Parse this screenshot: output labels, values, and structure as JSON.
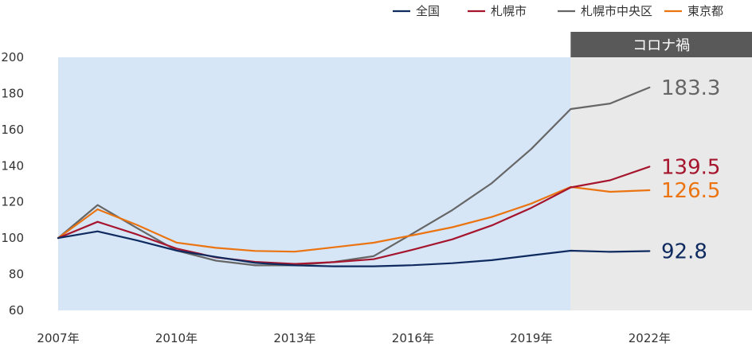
{
  "chart_data": {
    "type": "line",
    "title": "",
    "xlabel": "",
    "ylabel": "",
    "x": [
      2007,
      2008,
      2009,
      2010,
      2011,
      2012,
      2013,
      2014,
      2015,
      2016,
      2017,
      2018,
      2019,
      2020,
      2021,
      2022
    ],
    "x_tick_labels": [
      {
        "x": 2007,
        "label": "2007年"
      },
      {
        "x": 2010,
        "label": "2010年"
      },
      {
        "x": 2013,
        "label": "2013年"
      },
      {
        "x": 2016,
        "label": "2016年"
      },
      {
        "x": 2019,
        "label": "2019年"
      },
      {
        "x": 2022,
        "label": "2022年"
      }
    ],
    "ylim": [
      60,
      200
    ],
    "y_ticks": [
      60,
      80,
      100,
      120,
      140,
      160,
      180,
      200
    ],
    "x_range": [
      2007,
      2024.6
    ],
    "shaded_range": [
      2007,
      2020
    ],
    "covid_band": {
      "label": "コロナ禍",
      "from": 2020,
      "to": 2024.6
    },
    "legend_position": "top-right",
    "series": [
      {
        "name": "全国",
        "color": "#0f2a5f",
        "values": [
          100,
          103.7,
          98.7,
          93.1,
          89.6,
          86.3,
          84.9,
          84.4,
          84.4,
          85.0,
          86.1,
          87.8,
          90.4,
          93.0,
          92.4,
          92.8
        ],
        "end_label": "92.8"
      },
      {
        "name": "札幌市",
        "color": "#a5152d",
        "values": [
          100,
          109.0,
          102.0,
          94.2,
          89.3,
          86.8,
          85.7,
          86.7,
          88.3,
          93.6,
          99.3,
          107.0,
          116.7,
          128.0,
          132.0,
          139.5
        ],
        "end_label": "139.5"
      },
      {
        "name": "札幌市中央区",
        "color": "#666666",
        "values": [
          100,
          118.3,
          105.5,
          93.1,
          87.5,
          84.9,
          84.9,
          86.8,
          90.0,
          102.6,
          115.5,
          130.4,
          149.3,
          171.4,
          174.4,
          183.3
        ],
        "end_label": "183.3"
      },
      {
        "name": "東京都",
        "color": "#eb7411",
        "values": [
          100,
          115.9,
          107.3,
          97.5,
          94.6,
          92.9,
          92.5,
          94.9,
          97.4,
          101.6,
          106.0,
          111.7,
          119.1,
          128.3,
          125.6,
          126.5
        ],
        "end_label": "126.5"
      }
    ]
  }
}
